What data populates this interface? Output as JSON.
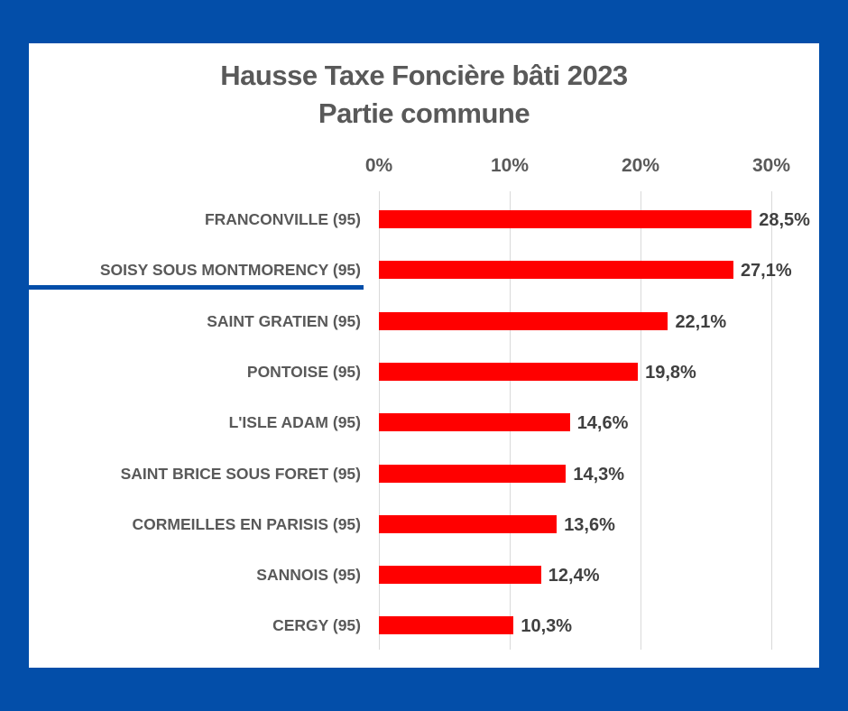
{
  "chart_data": {
    "type": "bar",
    "orientation": "horizontal",
    "title": "Hausse Taxe Foncière bâti 2023",
    "subtitle": "Partie commune",
    "xlabel": "",
    "ylabel": "",
    "categories": [
      "FRANCONVILLE (95)",
      "SOISY SOUS MONTMORENCY (95)",
      "SAINT GRATIEN (95)",
      "PONTOISE (95)",
      "L'ISLE ADAM (95)",
      "SAINT BRICE SOUS FORET (95)",
      "CORMEILLES EN PARISIS (95)",
      "SANNOIS (95)",
      "CERGY (95)"
    ],
    "values": [
      28.5,
      27.1,
      22.1,
      19.8,
      14.6,
      14.3,
      13.6,
      12.4,
      10.3
    ],
    "value_labels": [
      "28,5%",
      "27,1%",
      "22,1%",
      "19,8%",
      "14,6%",
      "14,3%",
      "13,6%",
      "12,4%",
      "10,3%"
    ],
    "xticks": [
      "0%",
      "10%",
      "20%",
      "30%"
    ],
    "xlim": [
      0,
      30
    ],
    "x_axis_position": "top",
    "grid": true,
    "legend": null,
    "highlighted_category": "SOISY SOUS MONTMORENCY (95)"
  },
  "colors": {
    "background": "#034ea9",
    "panel": "#ffffff",
    "bar": "#ff0000",
    "text": "#595959",
    "value_text": "#404040",
    "gridline": "#d9d9d9",
    "highlight_underline": "#034ea9"
  }
}
